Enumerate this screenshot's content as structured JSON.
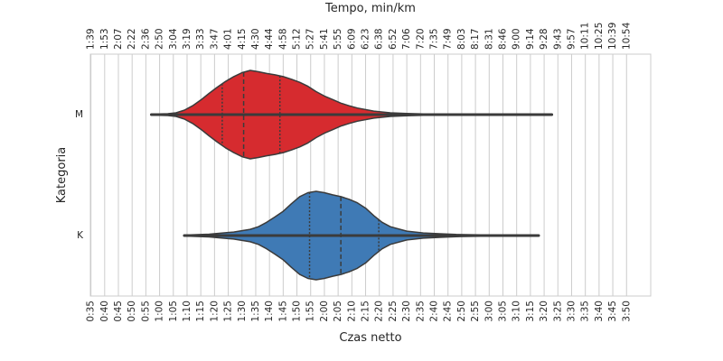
{
  "chart_data": {
    "type": "violin",
    "orientation": "horizontal",
    "xlabel": "Czas netto",
    "x2label": "Tempo, min/km",
    "ylabel": "Kategoria",
    "xlim": [
      0.58,
      3.98
    ],
    "grid": true,
    "bottom_ticks": [
      "0:35",
      "0:40",
      "0:45",
      "0:50",
      "0:55",
      "1:00",
      "1:05",
      "1:10",
      "1:15",
      "1:20",
      "1:25",
      "1:30",
      "1:35",
      "1:40",
      "1:45",
      "1:50",
      "1:55",
      "2:00",
      "2:05",
      "2:10",
      "2:15",
      "2:20",
      "2:25",
      "2:30",
      "2:35",
      "2:40",
      "2:45",
      "2:50",
      "2:55",
      "3:00",
      "3:05",
      "3:10",
      "3:15",
      "3:20",
      "3:25",
      "3:30",
      "3:35",
      "3:40",
      "3:45",
      "3:50"
    ],
    "top_ticks": [
      "1:39",
      "1:53",
      "2:07",
      "2:22",
      "2:36",
      "2:50",
      "3:04",
      "3:19",
      "3:33",
      "3:47",
      "4:01",
      "4:15",
      "4:30",
      "4:44",
      "4:58",
      "5:12",
      "5:27",
      "5:41",
      "5:55",
      "6:09",
      "6:23",
      "6:38",
      "6:52",
      "7:06",
      "7:20",
      "7:35",
      "7:49",
      "8:03",
      "8:17",
      "8:31",
      "8:46",
      "9:00",
      "9:14",
      "9:28",
      "9:43",
      "9:57",
      "10:11",
      "10:25",
      "10:39",
      "10:54"
    ],
    "categories": [
      "M",
      "K"
    ],
    "series": [
      {
        "name": "M",
        "color": "#d62b2f",
        "x": [
          0.95,
          1.05,
          1.1,
          1.15,
          1.2,
          1.25,
          1.3,
          1.35,
          1.4,
          1.45,
          1.5,
          1.55,
          1.6,
          1.65,
          1.7,
          1.75,
          1.8,
          1.85,
          1.9,
          1.95,
          2.0,
          2.05,
          2.1,
          2.15,
          2.2,
          2.3,
          2.4,
          2.5,
          2.6,
          2.8,
          3.0,
          3.2,
          3.38
        ],
        "density": [
          0.01,
          0.02,
          0.04,
          0.1,
          0.2,
          0.33,
          0.48,
          0.62,
          0.75,
          0.86,
          0.95,
          1.0,
          0.97,
          0.93,
          0.9,
          0.86,
          0.8,
          0.73,
          0.64,
          0.52,
          0.42,
          0.34,
          0.26,
          0.2,
          0.15,
          0.08,
          0.04,
          0.025,
          0.017,
          0.012,
          0.008,
          0.006,
          0.004
        ],
        "quartiles": [
          1.38,
          1.51,
          1.73
        ],
        "range": [
          0.95,
          3.38
        ]
      },
      {
        "name": "K",
        "color": "#3f7ab5",
        "x": [
          1.15,
          1.3,
          1.45,
          1.55,
          1.6,
          1.65,
          1.7,
          1.75,
          1.8,
          1.85,
          1.9,
          1.95,
          2.0,
          2.05,
          2.1,
          2.15,
          2.2,
          2.25,
          2.3,
          2.35,
          2.4,
          2.5,
          2.6,
          2.7,
          2.8,
          2.9,
          3.0,
          3.1,
          3.2,
          3.3
        ],
        "density": [
          0.01,
          0.03,
          0.08,
          0.14,
          0.2,
          0.3,
          0.42,
          0.55,
          0.72,
          0.88,
          0.97,
          1.0,
          0.97,
          0.92,
          0.88,
          0.82,
          0.74,
          0.62,
          0.45,
          0.3,
          0.2,
          0.1,
          0.06,
          0.04,
          0.025,
          0.018,
          0.012,
          0.008,
          0.005,
          0.003
        ],
        "quartiles": [
          1.91,
          2.1,
          2.33
        ],
        "range": [
          1.15,
          3.3
        ]
      }
    ]
  }
}
